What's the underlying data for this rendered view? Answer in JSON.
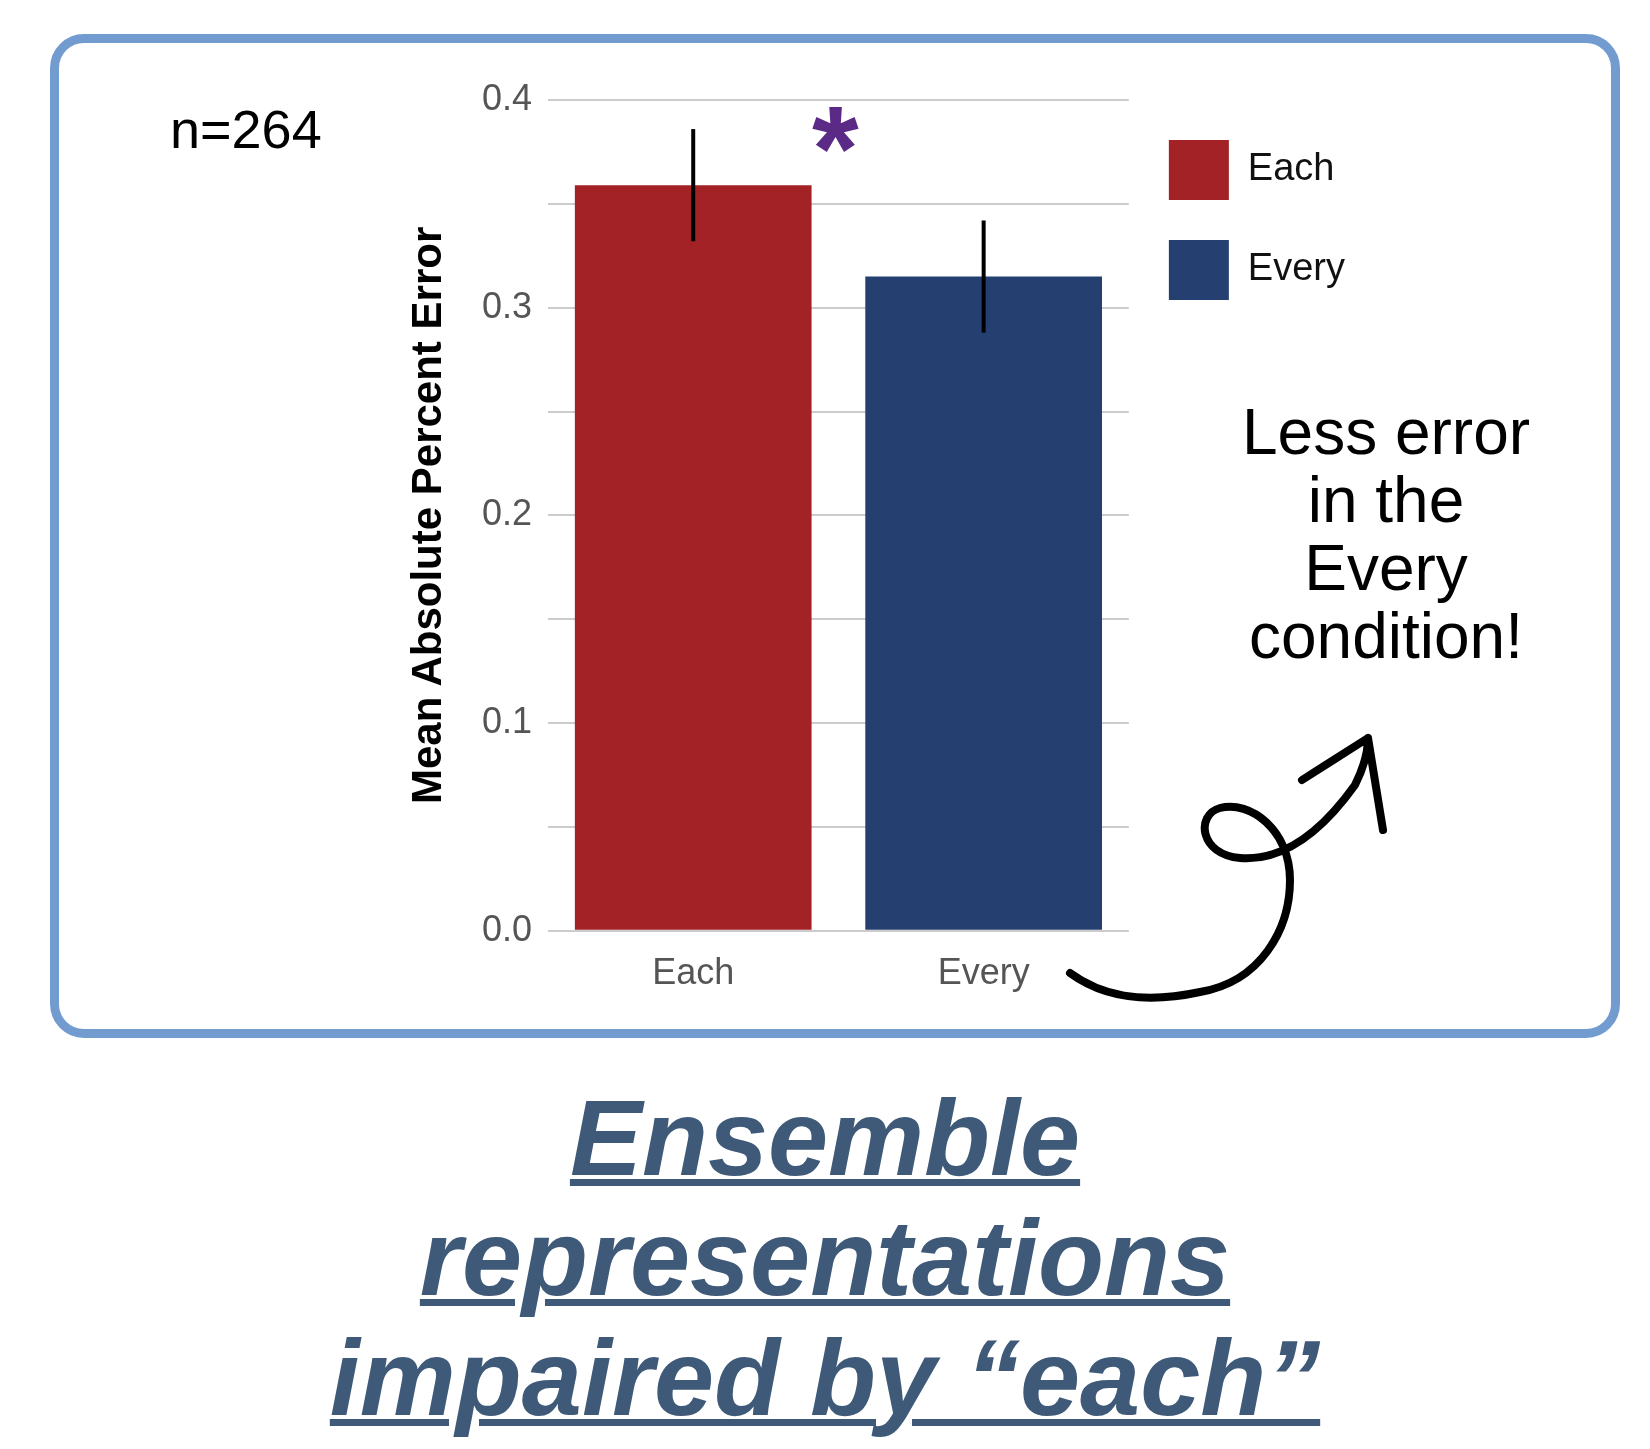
{
  "chart_data": {
    "type": "bar",
    "title": "Ensemble representations impaired by “each”",
    "ylabel": "Mean Absolute Percent Error",
    "categories": [
      "Each",
      "Every"
    ],
    "series": [
      {
        "name": "Each",
        "color": "#a32226",
        "values": [
          0.359,
          null
        ],
        "errors": [
          [
            0.332,
            0.386
          ],
          null
        ]
      },
      {
        "name": "Every",
        "color": "#253f70",
        "values": [
          null,
          0.315
        ],
        "errors": [
          null,
          [
            0.288,
            0.342
          ]
        ]
      }
    ],
    "ylim": [
      0,
      0.4
    ],
    "yticks": [
      {
        "value": 0,
        "label": "0.0"
      },
      {
        "value": 0.05,
        "label": null
      },
      0.1,
      {
        "value": 0.15,
        "label": null
      },
      0.2,
      {
        "value": 0.25,
        "label": null
      },
      0.3,
      {
        "value": 0.35,
        "label": null
      },
      0.4
    ],
    "grid": "y",
    "legend": "top right",
    "annotations": [
      "n=264",
      "*",
      "Less error in the Every condition!"
    ]
  }
}
